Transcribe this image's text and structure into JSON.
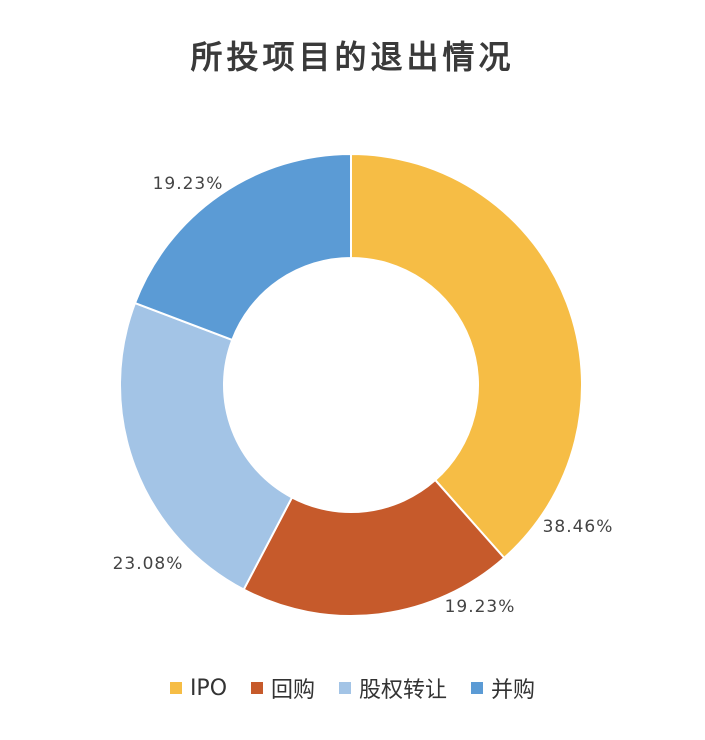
{
  "chart_data": {
    "type": "pie",
    "subtype": "donut",
    "title": "所投项目的退出情况",
    "categories": [
      "IPO",
      "回购",
      "股权转让",
      "并购"
    ],
    "values": [
      38.46,
      19.23,
      23.08,
      19.23
    ],
    "data_labels": [
      "38.46%",
      "19.23%",
      "23.08%",
      "19.23%"
    ],
    "colors": [
      "#F6BD45",
      "#C65A2B",
      "#A3C4E6",
      "#5B9BD5"
    ],
    "legend_position": "bottom",
    "start_angle": "12 o'clock",
    "direction": "clockwise"
  }
}
